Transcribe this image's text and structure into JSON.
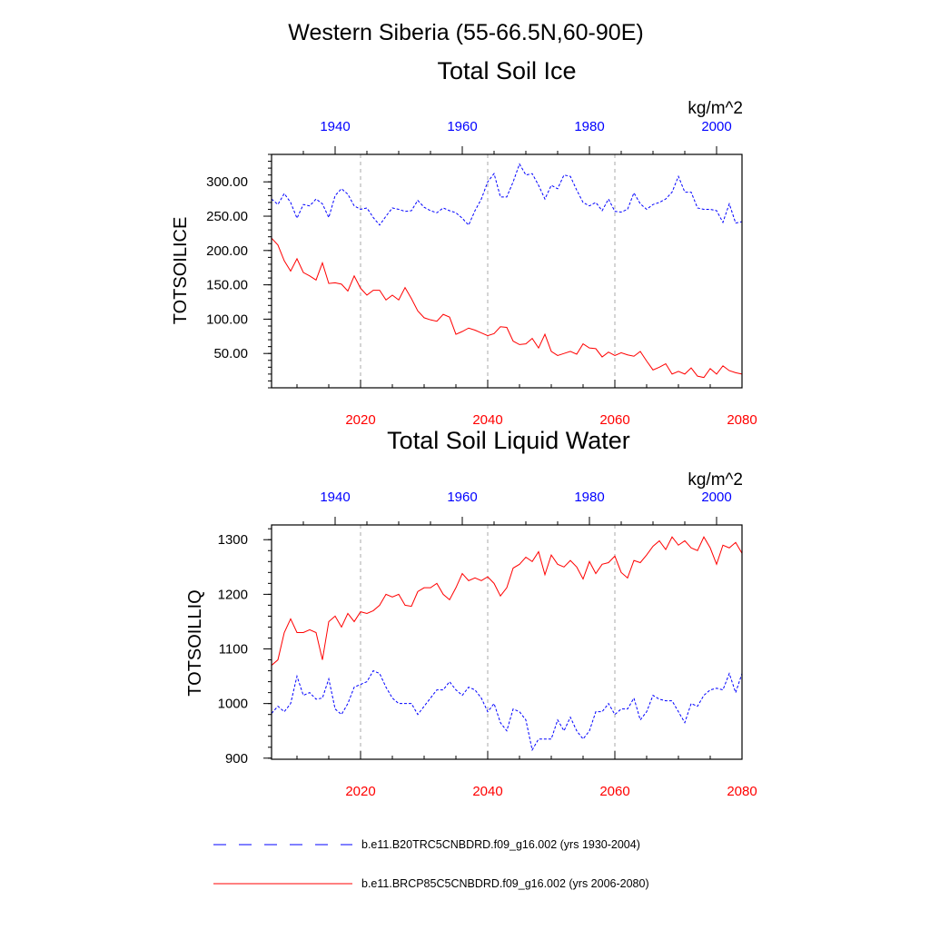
{
  "figure": {
    "title": "Western Siberia (55-66.5N,60-90E)",
    "bottom_axis_color": "#ff0000",
    "top_axis_color": "#0000ff"
  },
  "legend": {
    "entries": [
      {
        "label": "b.e11.B20TRC5CNBDRD.f09_g16.002 (yrs 1930-2004)",
        "color": "#0000ff",
        "style": "dashed"
      },
      {
        "label": "b.e11.BRCP85C5CNBDRD.f09_g16.002 (yrs 2006-2080)",
        "color": "#ff0000",
        "style": "solid"
      }
    ]
  },
  "chart_data": [
    {
      "type": "line",
      "title": "Total Soil Ice",
      "units": "kg/m^2",
      "ylabel": "TOTSOILICE",
      "ylim": [
        0,
        340
      ],
      "yticks": [
        50,
        100,
        150,
        200,
        250,
        300
      ],
      "ytick_labels": [
        "50.00",
        "100.00",
        "150.00",
        "200.00",
        "250.00",
        "300.00"
      ],
      "bottom_axis": {
        "range": [
          2006,
          2080
        ],
        "ticks": [
          2020,
          2040,
          2060,
          2080
        ],
        "labels": [
          "2020",
          "2040",
          "2060",
          "2080"
        ]
      },
      "top_axis": {
        "range": [
          1930,
          2004
        ],
        "ticks": [
          1940,
          1960,
          1980,
          2000
        ],
        "labels": [
          "1940",
          "1960",
          "1980",
          "2000"
        ]
      },
      "grid_x": [
        2020,
        2040,
        2060
      ],
      "series": [
        {
          "name": "b.e11.B20TRC5CNBDRD.f09_g16.002 (yrs 1930-2004)",
          "color": "#0000ff",
          "style": "dashed",
          "x_start": 1930,
          "values": [
            275,
            267,
            283,
            270,
            247,
            267,
            265,
            275,
            268,
            248,
            280,
            290,
            282,
            265,
            260,
            262,
            248,
            237,
            250,
            262,
            260,
            257,
            258,
            273,
            263,
            258,
            255,
            262,
            258,
            255,
            247,
            237,
            258,
            275,
            300,
            312,
            278,
            278,
            300,
            326,
            310,
            312,
            295,
            275,
            295,
            290,
            310,
            308,
            288,
            270,
            265,
            270,
            258,
            275,
            257,
            256,
            260,
            284,
            268,
            260,
            267,
            270,
            275,
            285,
            308,
            285,
            285,
            262,
            260,
            260,
            258,
            241,
            268,
            240,
            242
          ]
        },
        {
          "name": "b.e11.BRCP85C5CNBDRD.f09_g16.002 (yrs 2006-2080)",
          "color": "#ff0000",
          "style": "solid",
          "x_start": 2006,
          "values": [
            218,
            208,
            185,
            170,
            188,
            168,
            163,
            157,
            182,
            152,
            153,
            151,
            141,
            163,
            145,
            135,
            142,
            142,
            128,
            135,
            128,
            146,
            130,
            112,
            102,
            99,
            97,
            107,
            103,
            78,
            82,
            87,
            84,
            80,
            76,
            79,
            89,
            88,
            68,
            63,
            64,
            72,
            58,
            78,
            53,
            47,
            50,
            53,
            49,
            64,
            58,
            57,
            45,
            52,
            47,
            51,
            48,
            46,
            53,
            39,
            26,
            30,
            35,
            20,
            24,
            20,
            29,
            17,
            15,
            28,
            20,
            32,
            25,
            22,
            20
          ]
        }
      ]
    },
    {
      "type": "line",
      "title": "Total Soil Liquid Water",
      "units": "kg/m^2",
      "ylabel": "TOTSOILLIQ",
      "ylim": [
        898,
        1327
      ],
      "yticks": [
        900,
        1000,
        1100,
        1200,
        1300
      ],
      "ytick_labels": [
        "900",
        "1000",
        "1100",
        "1200",
        "1300"
      ],
      "bottom_axis": {
        "range": [
          2006,
          2080
        ],
        "ticks": [
          2020,
          2040,
          2060,
          2080
        ],
        "labels": [
          "2020",
          "2040",
          "2060",
          "2080"
        ]
      },
      "top_axis": {
        "range": [
          1930,
          2004
        ],
        "ticks": [
          1940,
          1960,
          1980,
          2000
        ],
        "labels": [
          "1940",
          "1960",
          "1980",
          "2000"
        ]
      },
      "grid_x": [
        2020,
        2040,
        2060
      ],
      "series": [
        {
          "name": "b.e11.B20TRC5CNBDRD.f09_g16.002 (yrs 1930-2004)",
          "color": "#0000ff",
          "style": "dashed",
          "x_start": 1930,
          "values": [
            982,
            995,
            985,
            1000,
            1050,
            1015,
            1020,
            1008,
            1010,
            1045,
            990,
            980,
            1000,
            1030,
            1035,
            1040,
            1060,
            1055,
            1030,
            1010,
            1000,
            1000,
            1000,
            980,
            995,
            1010,
            1025,
            1025,
            1040,
            1025,
            1015,
            1030,
            1025,
            1010,
            985,
            1000,
            965,
            950,
            990,
            985,
            970,
            915,
            935,
            935,
            935,
            970,
            950,
            975,
            950,
            935,
            950,
            985,
            985,
            1000,
            980,
            990,
            990,
            1010,
            970,
            985,
            1015,
            1008,
            1005,
            1005,
            985,
            965,
            1000,
            995,
            1015,
            1025,
            1028,
            1025,
            1055,
            1020,
            1055
          ]
        },
        {
          "name": "b.e11.BRCP85C5CNBDRD.f09_g16.002 (yrs 2006-2080)",
          "color": "#ff0000",
          "style": "solid",
          "x_start": 2006,
          "values": [
            1070,
            1080,
            1130,
            1155,
            1130,
            1130,
            1135,
            1130,
            1080,
            1150,
            1160,
            1140,
            1165,
            1150,
            1168,
            1165,
            1170,
            1180,
            1200,
            1195,
            1200,
            1180,
            1178,
            1205,
            1212,
            1212,
            1220,
            1200,
            1190,
            1212,
            1238,
            1225,
            1230,
            1225,
            1232,
            1220,
            1197,
            1212,
            1248,
            1255,
            1268,
            1260,
            1278,
            1236,
            1272,
            1255,
            1250,
            1262,
            1250,
            1228,
            1260,
            1238,
            1255,
            1258,
            1270,
            1240,
            1230,
            1262,
            1258,
            1272,
            1288,
            1298,
            1282,
            1305,
            1290,
            1298,
            1285,
            1280,
            1305,
            1285,
            1255,
            1290,
            1285,
            1295,
            1275
          ]
        }
      ]
    }
  ]
}
